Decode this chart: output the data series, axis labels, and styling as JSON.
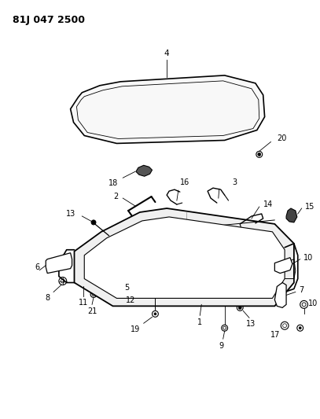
{
  "title": "81J 047 2500",
  "bg": "#ffffff",
  "lc": "#000000",
  "fig_w": 4.07,
  "fig_h": 5.33,
  "dpi": 100
}
